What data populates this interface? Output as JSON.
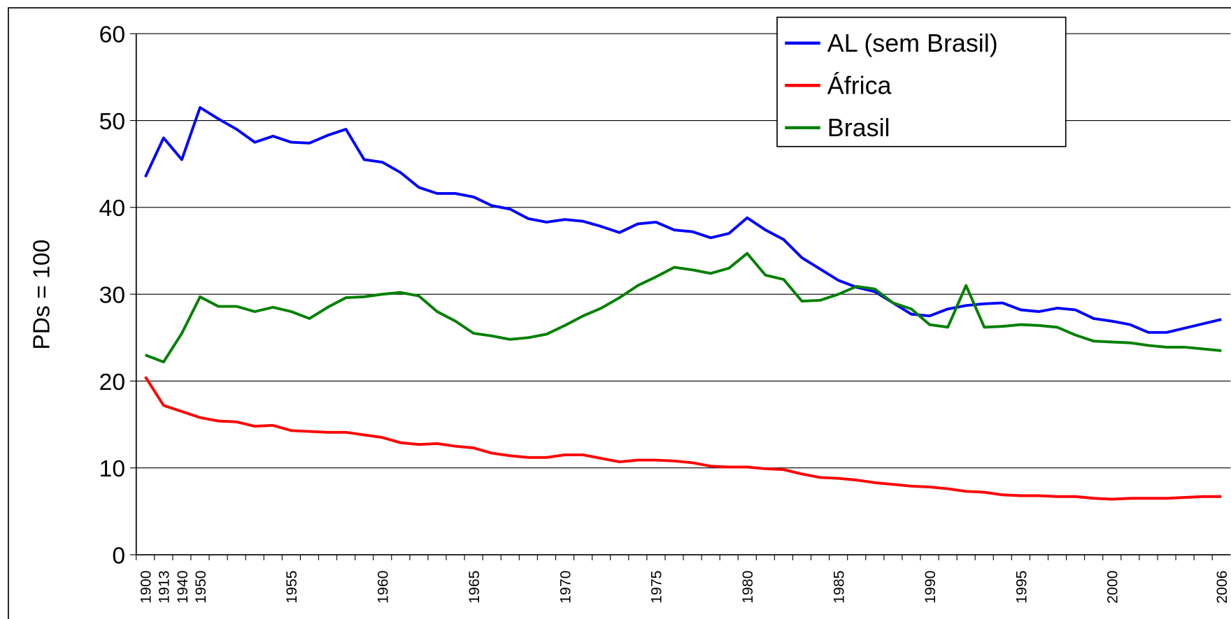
{
  "chart_data": {
    "type": "line",
    "y_label": "PDs = 100",
    "categories": [
      "1900",
      "1913",
      "1940",
      "1950",
      null,
      null,
      null,
      null,
      "1955",
      null,
      null,
      null,
      null,
      "1960",
      null,
      null,
      null,
      null,
      "1965",
      null,
      null,
      null,
      null,
      "1970",
      null,
      null,
      null,
      null,
      "1975",
      null,
      null,
      null,
      null,
      "1980",
      null,
      null,
      null,
      null,
      "1985",
      null,
      null,
      null,
      null,
      "1990",
      null,
      null,
      null,
      null,
      "1995",
      null,
      null,
      null,
      null,
      "2000",
      null,
      null,
      null,
      null,
      null,
      "2006"
    ],
    "series": [
      {
        "name": "AL (sem Brasil)",
        "color": "#0000ff",
        "values": [
          43.5,
          48,
          45.5,
          51.5,
          50.2,
          49,
          47.5,
          48.2,
          47.5,
          47.4,
          48.3,
          49,
          45.5,
          45.2,
          44,
          42.3,
          41.6,
          41.6,
          41.2,
          40.2,
          39.8,
          38.7,
          38.3,
          38.6,
          38.4,
          37.8,
          37.1,
          38.1,
          38.3,
          37.4,
          37.2,
          36.5,
          37,
          38.8,
          37.4,
          36.3,
          34.2,
          32.9,
          31.6,
          30.8,
          30.3,
          29,
          27.7,
          27.5,
          28.3,
          28.7,
          28.9,
          29,
          28.2,
          28,
          28.4,
          28.2,
          27.2,
          26.9,
          26.5,
          25.6,
          25.6,
          26.1,
          26.6,
          27.1
        ]
      },
      {
        "name": "África",
        "color": "#ff0000",
        "values": [
          20.5,
          17.2,
          16.5,
          15.8,
          15.4,
          15.3,
          14.8,
          14.9,
          14.3,
          14.2,
          14.1,
          14.1,
          13.8,
          13.5,
          12.9,
          12.7,
          12.8,
          12.5,
          12.3,
          11.7,
          11.4,
          11.2,
          11.2,
          11.5,
          11.5,
          11.1,
          10.7,
          10.9,
          10.9,
          10.8,
          10.6,
          10.2,
          10.1,
          10.1,
          9.9,
          9.8,
          9.3,
          8.9,
          8.8,
          8.6,
          8.3,
          8.1,
          7.9,
          7.8,
          7.6,
          7.3,
          7.2,
          6.9,
          6.8,
          6.8,
          6.7,
          6.7,
          6.5,
          6.4,
          6.5,
          6.5,
          6.5,
          6.6,
          6.7,
          6.7
        ]
      },
      {
        "name": "Brasil",
        "color": "#008000",
        "values": [
          23,
          22.2,
          25.5,
          29.7,
          28.6,
          28.6,
          28,
          28.5,
          28,
          27.2,
          28.5,
          29.6,
          29.7,
          30,
          30.2,
          29.8,
          28,
          26.9,
          25.5,
          25.2,
          24.8,
          25,
          25.4,
          26.4,
          27.5,
          28.4,
          29.6,
          31,
          32,
          33.1,
          32.8,
          32.4,
          33,
          34.7,
          32.2,
          31.7,
          29.2,
          29.3,
          30,
          30.9,
          30.6,
          29,
          28.3,
          26.5,
          26.2,
          31,
          26.2,
          26.3,
          26.5,
          26.4,
          26.2,
          25.3,
          24.6,
          24.5,
          24.4,
          24.1,
          23.9,
          23.9,
          23.7,
          23.5
        ]
      }
    ],
    "ylim": [
      0,
      60
    ],
    "yticks": [
      0,
      10,
      20,
      30,
      40,
      50,
      60
    ],
    "grid": true,
    "legend": "top-right"
  }
}
